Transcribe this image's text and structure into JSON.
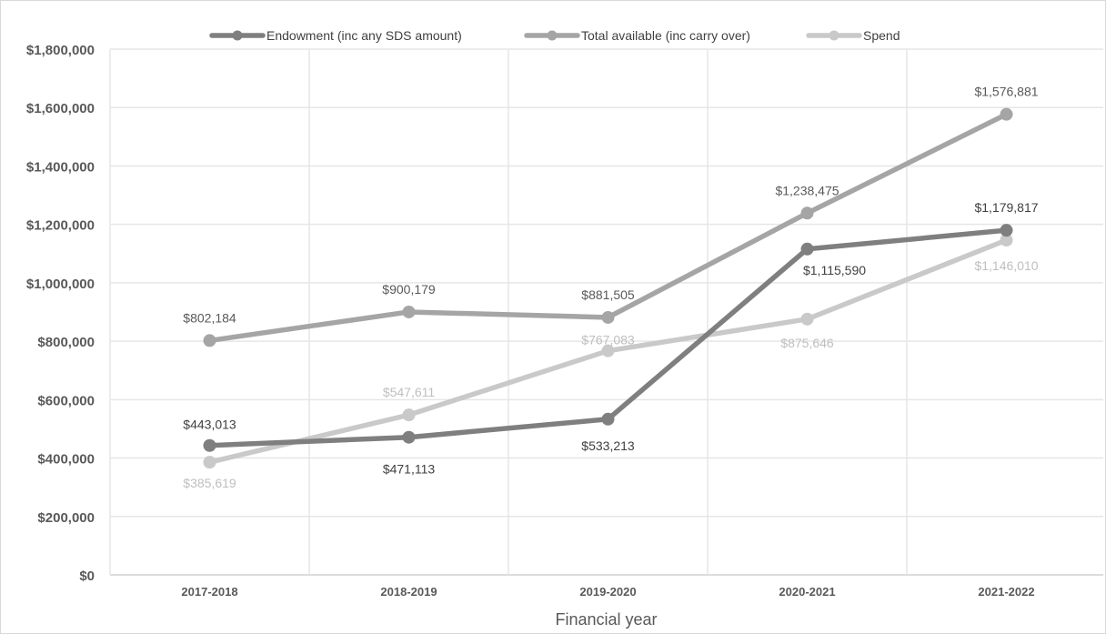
{
  "chart_data": {
    "type": "line",
    "categories": [
      "2017-2018",
      "2018-2019",
      "2019-2020",
      "2020-2021",
      "2021-2022"
    ],
    "xlabel": "Financial year",
    "ylabel": "",
    "ylim": [
      0,
      1800000
    ],
    "yticks": [
      0,
      200000,
      400000,
      600000,
      800000,
      1000000,
      1200000,
      1400000,
      1600000,
      1800000
    ],
    "ytick_labels": [
      "$0",
      "$200,000",
      "$400,000",
      "$600,000",
      "$800,000",
      "$1,000,000",
      "$1,200,000",
      "$1,400,000",
      "$1,600,000",
      "$1,800,000"
    ],
    "grid": "both",
    "legend_position": "top",
    "series": [
      {
        "name": "Endowment (inc any SDS amount)",
        "color": "#7f7f7f",
        "values": [
          443013,
          471113,
          533213,
          1115590,
          1179817
        ],
        "labels": [
          "$443,013",
          "$471,113",
          "$533,213",
          "$1,115,590",
          "$1,179,817"
        ]
      },
      {
        "name": "Total available (inc carry over)",
        "color": "#a5a5a5",
        "values": [
          802184,
          900179,
          881505,
          1238475,
          1576881
        ],
        "labels": [
          "$802,184",
          "$900,179",
          "$881,505",
          "$1,238,475",
          "$1,576,881"
        ]
      },
      {
        "name": "Spend",
        "color": "#c9c9c9",
        "values": [
          385619,
          547611,
          767083,
          875646,
          1146010
        ],
        "labels": [
          "$385,619",
          "$547,611",
          "$767,083",
          "$875,646",
          "$1,146,010"
        ]
      }
    ]
  }
}
